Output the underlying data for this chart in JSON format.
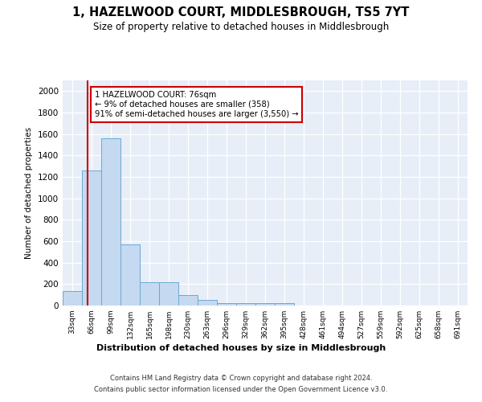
{
  "title": "1, HAZELWOOD COURT, MIDDLESBROUGH, TS5 7YT",
  "subtitle": "Size of property relative to detached houses in Middlesbrough",
  "xlabel": "Distribution of detached houses by size in Middlesbrough",
  "ylabel": "Number of detached properties",
  "bin_labels": [
    "33sqm",
    "66sqm",
    "99sqm",
    "132sqm",
    "165sqm",
    "198sqm",
    "230sqm",
    "263sqm",
    "296sqm",
    "329sqm",
    "362sqm",
    "395sqm",
    "428sqm",
    "461sqm",
    "494sqm",
    "527sqm",
    "559sqm",
    "592sqm",
    "625sqm",
    "658sqm",
    "691sqm"
  ],
  "bar_values": [
    135,
    1260,
    1560,
    570,
    215,
    215,
    95,
    50,
    25,
    20,
    20,
    20,
    0,
    0,
    0,
    0,
    0,
    0,
    0,
    0,
    0
  ],
  "bar_color": "#c5d9f0",
  "bar_edge_color": "#6aaad4",
  "annotation_text_line1": "1 HAZELWOOD COURT: 76sqm",
  "annotation_text_line2": "← 9% of detached houses are smaller (358)",
  "annotation_text_line3": "91% of semi-detached houses are larger (3,550) →",
  "annotation_box_facecolor": "#ffffff",
  "annotation_box_edgecolor": "#cc0000",
  "red_line_color": "#cc0000",
  "ylim": [
    0,
    2100
  ],
  "yticks": [
    0,
    200,
    400,
    600,
    800,
    1000,
    1200,
    1400,
    1600,
    1800,
    2000
  ],
  "background_color": "#e8eef8",
  "footer_line1": "Contains HM Land Registry data © Crown copyright and database right 2024.",
  "footer_line2": "Contains public sector information licensed under the Open Government Licence v3.0."
}
